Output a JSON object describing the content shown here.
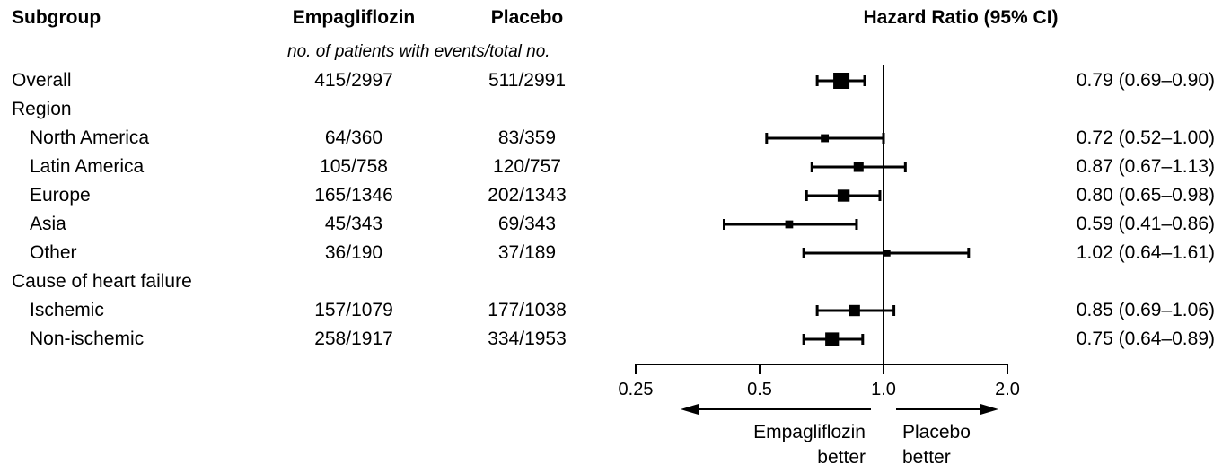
{
  "headers": {
    "subgroup": "Subgroup",
    "empagliflozin": "Empagliflozin",
    "placebo": "Placebo",
    "hazard_ratio": "Hazard Ratio (95% CI)",
    "subheader": "no. of patients with events/total no."
  },
  "rows": [
    {
      "label": "Overall",
      "indent": false,
      "empa": "415/2997",
      "placebo": "511/2991",
      "ci_text": "0.79 (0.69–0.90)"
    },
    {
      "label": "Region",
      "indent": false,
      "empa": "",
      "placebo": "",
      "ci_text": ""
    },
    {
      "label": "North America",
      "indent": true,
      "empa": "64/360",
      "placebo": "83/359",
      "ci_text": "0.72 (0.52–1.00)"
    },
    {
      "label": "Latin America",
      "indent": true,
      "empa": "105/758",
      "placebo": "120/757",
      "ci_text": "0.87 (0.67–1.13)"
    },
    {
      "label": "Europe",
      "indent": true,
      "empa": "165/1346",
      "placebo": "202/1343",
      "ci_text": "0.80 (0.65–0.98)"
    },
    {
      "label": "Asia",
      "indent": true,
      "empa": "45/343",
      "placebo": "69/343",
      "ci_text": "0.59 (0.41–0.86)"
    },
    {
      "label": "Other",
      "indent": true,
      "empa": "36/190",
      "placebo": "37/189",
      "ci_text": "1.02 (0.64–1.61)"
    },
    {
      "label": "Cause of heart failure",
      "indent": false,
      "empa": "",
      "placebo": "",
      "ci_text": ""
    },
    {
      "label": "Ischemic",
      "indent": true,
      "empa": "157/1079",
      "placebo": "177/1038",
      "ci_text": "0.85 (0.69–1.06)"
    },
    {
      "label": "Non-ischemic",
      "indent": true,
      "empa": "258/1917",
      "placebo": "334/1953",
      "ci_text": "0.75 (0.64–0.89)"
    }
  ],
  "chart_data": {
    "type": "forest",
    "title": "",
    "xlabel": "Hazard Ratio (95% CI)",
    "x_scale": "log",
    "xlim": [
      0.25,
      2.0
    ],
    "reference_line": 1.0,
    "ticks": [
      0.25,
      0.5,
      1.0,
      2.0
    ],
    "tick_labels": [
      "0.25",
      "0.5",
      "1.0",
      "2.0"
    ],
    "series": [
      {
        "label": "Overall",
        "hr": 0.79,
        "ci": [
          0.69,
          0.9
        ],
        "marker_weight": 2997
      },
      {
        "label": "North America",
        "hr": 0.72,
        "ci": [
          0.52,
          1.0
        ],
        "marker_weight": 360
      },
      {
        "label": "Latin America",
        "hr": 0.87,
        "ci": [
          0.67,
          1.13
        ],
        "marker_weight": 758
      },
      {
        "label": "Europe",
        "hr": 0.8,
        "ci": [
          0.65,
          0.98
        ],
        "marker_weight": 1346
      },
      {
        "label": "Asia",
        "hr": 0.59,
        "ci": [
          0.41,
          0.86
        ],
        "marker_weight": 343
      },
      {
        "label": "Other",
        "hr": 1.02,
        "ci": [
          0.64,
          1.61
        ],
        "marker_weight": 190
      },
      {
        "label": "Ischemic",
        "hr": 0.85,
        "ci": [
          0.69,
          1.06
        ],
        "marker_weight": 1079
      },
      {
        "label": "Non-ischemic",
        "hr": 0.75,
        "ci": [
          0.64,
          0.89
        ],
        "marker_weight": 1917
      }
    ],
    "favor_left": [
      "Empagliflozin",
      "better"
    ],
    "favor_right": [
      "Placebo",
      "better"
    ]
  }
}
